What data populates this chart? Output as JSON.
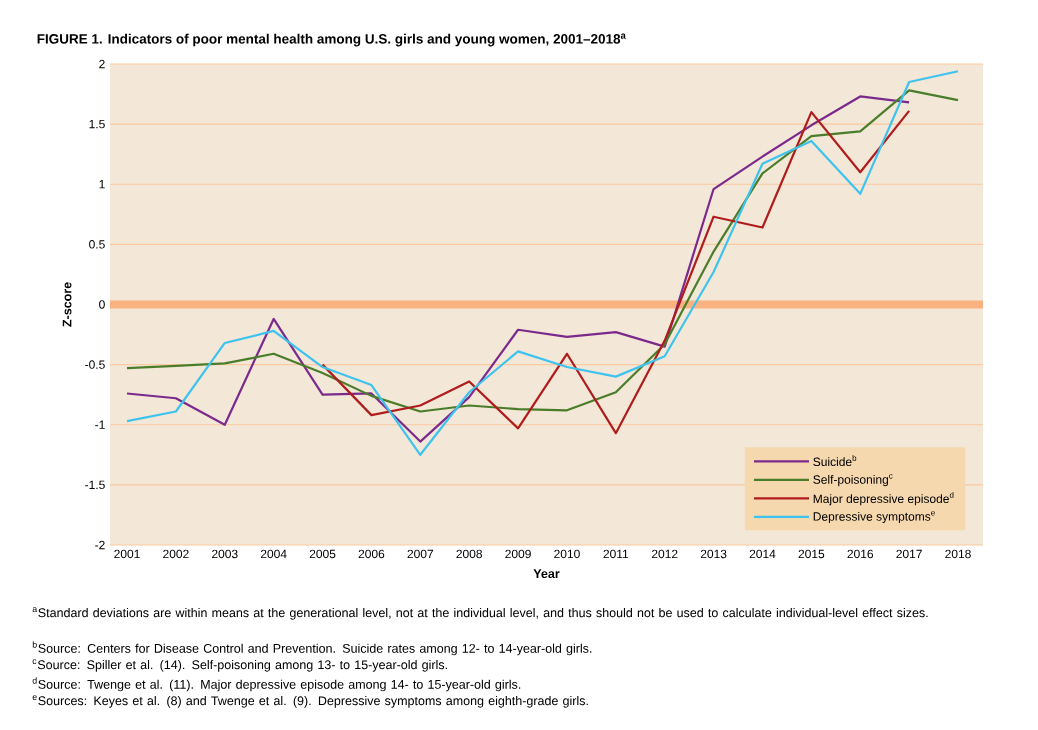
{
  "chart_data": {
    "type": "line",
    "title": "FIGURE 1. Indicators of poor mental health among U.S. girls and young women, 2001–2018$^{a}$",
    "xlabel": "Year",
    "ylabel": "Z-score",
    "categories": [
      "2001",
      "2002",
      "2003",
      "2004",
      "2005",
      "2006",
      "2007",
      "2008",
      "2009",
      "2010",
      "2011",
      "2012",
      "2013",
      "2014",
      "2015",
      "2016",
      "2017",
      "2018"
    ],
    "series": [
      {
        "name": "Suicide$^{b}$",
        "color": "#7b2a8c",
        "values": [
          -0.74,
          -0.78,
          -1.0,
          -0.12,
          -0.75,
          -0.74,
          -1.14,
          -0.77,
          -0.21,
          -0.27,
          -0.23,
          -0.35,
          0.96,
          1.23,
          1.49,
          1.73,
          1.68,
          null
        ]
      },
      {
        "name": "Self-poisoning$^{c}$",
        "color": "#4a7d2a",
        "values": [
          -0.53,
          -0.51,
          -0.49,
          -0.41,
          -0.57,
          -0.76,
          -0.89,
          -0.84,
          -0.87,
          -0.88,
          -0.73,
          -0.33,
          0.44,
          1.09,
          1.4,
          1.44,
          1.78,
          1.7
        ]
      },
      {
        "name": "Major depressive episode$^{d}$",
        "color": "#b01c1c",
        "values": [
          null,
          null,
          null,
          null,
          -0.5,
          -0.92,
          -0.84,
          -0.64,
          -1.03,
          -0.41,
          -1.07,
          -0.3,
          0.73,
          0.64,
          1.6,
          1.1,
          1.61,
          null
        ]
      },
      {
        "name": "Depressive symptoms$^{e}$",
        "color": "#3ec3ef",
        "values": [
          -0.97,
          -0.89,
          -0.32,
          -0.22,
          -0.52,
          -0.67,
          -1.25,
          -0.73,
          -0.39,
          -0.52,
          -0.6,
          -0.43,
          0.27,
          1.17,
          1.36,
          0.92,
          1.85,
          1.94
        ]
      }
    ],
    "ylim": [
      -2,
      2
    ],
    "yticks": [
      -2,
      -1.5,
      -1,
      -0.5,
      0,
      0.5,
      1,
      1.5,
      2
    ],
    "grid": "y",
    "legend": "bottom right",
    "line_style": "solid",
    "ref_lines": [
      {
        "axis": "y",
        "value": 0,
        "color": "#f9b280"
      }
    ],
    "annotations": [
      "$^{a}$Standard deviations are within means at the generational level, not at the individual level, and thus should not be used to calculate individual-level effect sizes.",
      "$^{b}$Source: Centers for Disease Control and Prevention. Suicide rates among 12- to 14-year-old girls.",
      "$^{c}$Source: Spiller et al. (14). Self-poisoning among 13- to 15-year-old girls.",
      "$^{d}$Source: Twenge et al. (11). Major depressive episode among 14- to 15-year-old girls.",
      "$^{e}$Sources: Keyes et al. (8) and Twenge et al. (9). Depressive symptoms among eighth-grade girls."
    ]
  }
}
